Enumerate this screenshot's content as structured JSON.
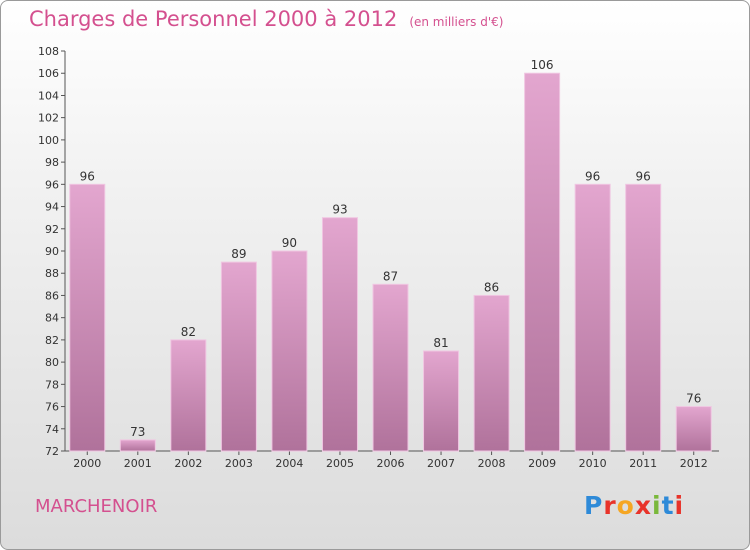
{
  "header": {
    "title": "Charges de Personnel 2000 à 2012",
    "subtitle": "(en milliers d'€)"
  },
  "footer": {
    "commune": "MARCHENOIR",
    "logo_letters": [
      "P",
      "r",
      "o",
      "x",
      "i",
      "t",
      "i"
    ],
    "logo_colors": [
      "#2e8ad8",
      "#e8332a",
      "#f5a623",
      "#e8332a",
      "#7ab83b",
      "#2e8ad8",
      "#e8332a"
    ]
  },
  "colors": {
    "bar_top": "#e3a6cf",
    "bar_bottom": "#b0729b",
    "bar_edge": "#f0c6e2",
    "axis": "#555555",
    "grid": "#cccccc"
  },
  "chart_data": {
    "type": "bar",
    "categories": [
      "2000",
      "2001",
      "2002",
      "2003",
      "2004",
      "2005",
      "2006",
      "2007",
      "2008",
      "2009",
      "2010",
      "2011",
      "2012"
    ],
    "values": [
      96,
      73,
      82,
      89,
      90,
      93,
      87,
      81,
      86,
      106,
      96,
      96,
      76
    ],
    "title": "Charges de Personnel 2000 à 2012",
    "subtitle": "(en milliers d'€)",
    "xlabel": "",
    "ylabel": "",
    "ylim": [
      72,
      108
    ],
    "yticks": [
      72,
      74,
      76,
      78,
      80,
      82,
      84,
      86,
      88,
      90,
      92,
      94,
      96,
      98,
      100,
      102,
      104,
      106,
      108
    ],
    "grid": false,
    "data_labels": true
  }
}
